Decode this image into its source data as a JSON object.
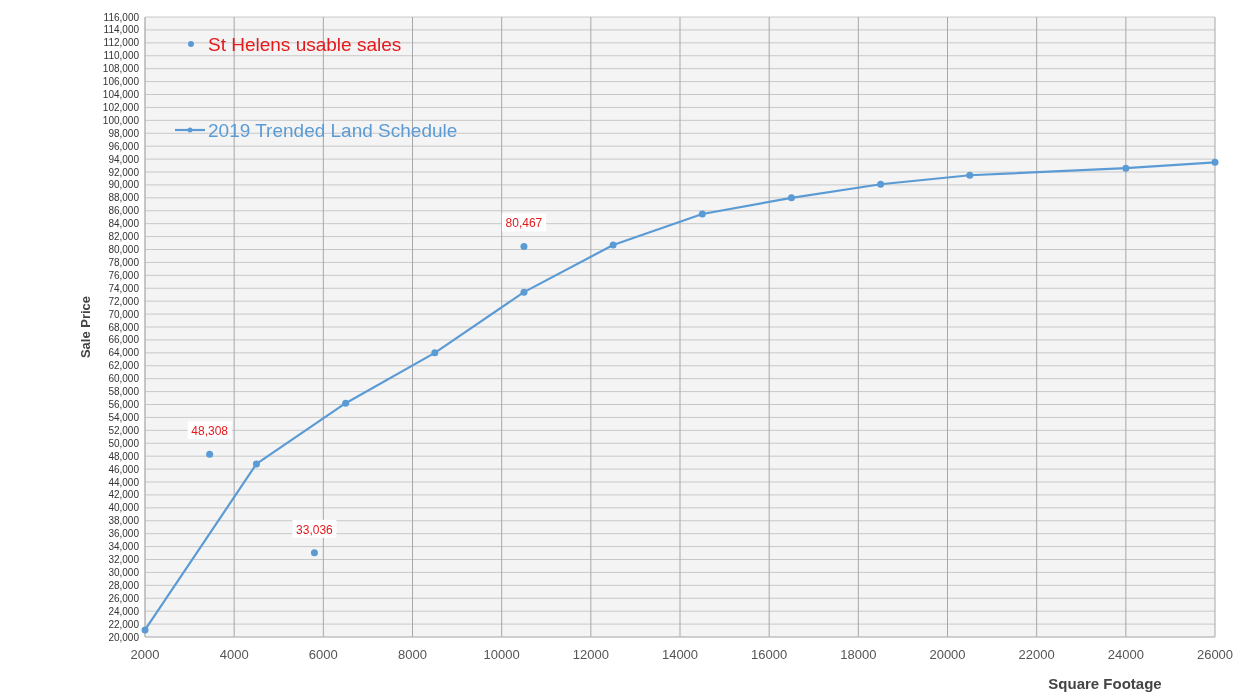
{
  "chart_data": {
    "type": "scatter",
    "xlabel": "Square Footage",
    "ylabel": "Sale Price",
    "xlim": [
      2000,
      26000
    ],
    "xticks": [
      2000,
      4000,
      6000,
      8000,
      10000,
      12000,
      14000,
      16000,
      18000,
      20000,
      22000,
      24000,
      26000
    ],
    "ylim": [
      20000,
      116000
    ],
    "yticks": [
      {
        "value": 20000,
        "label": "20,000"
      },
      {
        "value": 22000,
        "label": "22,000"
      },
      {
        "value": 24000,
        "label": "24,000"
      },
      {
        "value": 26000,
        "label": "26,000"
      },
      {
        "value": 28000,
        "label": "28,000"
      },
      {
        "value": 30000,
        "label": "30,000"
      },
      {
        "value": 32000,
        "label": "32,000"
      },
      {
        "value": 34000,
        "label": "34,000"
      },
      {
        "value": 36000,
        "label": "36,000"
      },
      {
        "value": 38000,
        "label": "38,000"
      },
      {
        "value": 40000,
        "label": "40,000"
      },
      {
        "value": 42000,
        "label": "42,000"
      },
      {
        "value": 44000,
        "label": "44,000"
      },
      {
        "value": 46000,
        "label": "46,000"
      },
      {
        "value": 48000,
        "label": "48,000"
      },
      {
        "value": 50000,
        "label": "50,000"
      },
      {
        "value": 52000,
        "label": "52,000"
      },
      {
        "value": 54000,
        "label": "54,000"
      },
      {
        "value": 56000,
        "label": "56,000"
      },
      {
        "value": 58000,
        "label": "58,000"
      },
      {
        "value": 60000,
        "label": "60,000"
      },
      {
        "value": 62000,
        "label": "62,000"
      },
      {
        "value": 64000,
        "label": "64,000"
      },
      {
        "value": 66000,
        "label": "66,000"
      },
      {
        "value": 68000,
        "label": "68,000"
      },
      {
        "value": 70000,
        "label": "70,000"
      },
      {
        "value": 72000,
        "label": "72,000"
      },
      {
        "value": 74000,
        "label": "74,000"
      },
      {
        "value": 76000,
        "label": "76,000"
      },
      {
        "value": 78000,
        "label": "78,000"
      },
      {
        "value": 80000,
        "label": "80,000"
      },
      {
        "value": 82000,
        "label": "82,000"
      },
      {
        "value": 84000,
        "label": "84,000"
      },
      {
        "value": 86000,
        "label": "86,000"
      },
      {
        "value": 88000,
        "label": "88,000"
      },
      {
        "value": 90000,
        "label": "90,000"
      },
      {
        "value": 92000,
        "label": "92,000"
      },
      {
        "value": 94000,
        "label": "94,000"
      },
      {
        "value": 96000,
        "label": "96,000"
      },
      {
        "value": 98000,
        "label": "98,000"
      },
      {
        "value": 100000,
        "label": "100,000"
      },
      {
        "value": 102000,
        "label": "102,000"
      },
      {
        "value": 104000,
        "label": "104,000"
      },
      {
        "value": 106000,
        "label": "106,000"
      },
      {
        "value": 108000,
        "label": "108,000"
      },
      {
        "value": 110000,
        "label": "110,000"
      },
      {
        "value": 112000,
        "label": "112,000"
      },
      {
        "value": 114000,
        "label": "114,000"
      },
      {
        "value": 116000,
        "label": "116,000"
      }
    ],
    "grid": true,
    "legend": "top left",
    "marker": "circle",
    "series": [
      {
        "name": "St Helens usable sales",
        "color": "#5b9bd5",
        "x": [
          3450,
          5800,
          10500
        ],
        "values": [
          48308,
          33036,
          80467
        ],
        "value_labels": [
          "48,308",
          "33,036",
          "80,467"
        ]
      },
      {
        "name": "2019 Trended Land Schedule",
        "type": "line",
        "color": "#5b9bd5",
        "line_style": "solid",
        "x": [
          2000,
          4500,
          6500,
          8500,
          10500,
          12500,
          14500,
          16500,
          18500,
          20500,
          24000,
          26000
        ],
        "values": [
          21100,
          46800,
          56200,
          64000,
          73400,
          80700,
          85500,
          88000,
          90100,
          91500,
          92600,
          93500
        ]
      }
    ]
  }
}
